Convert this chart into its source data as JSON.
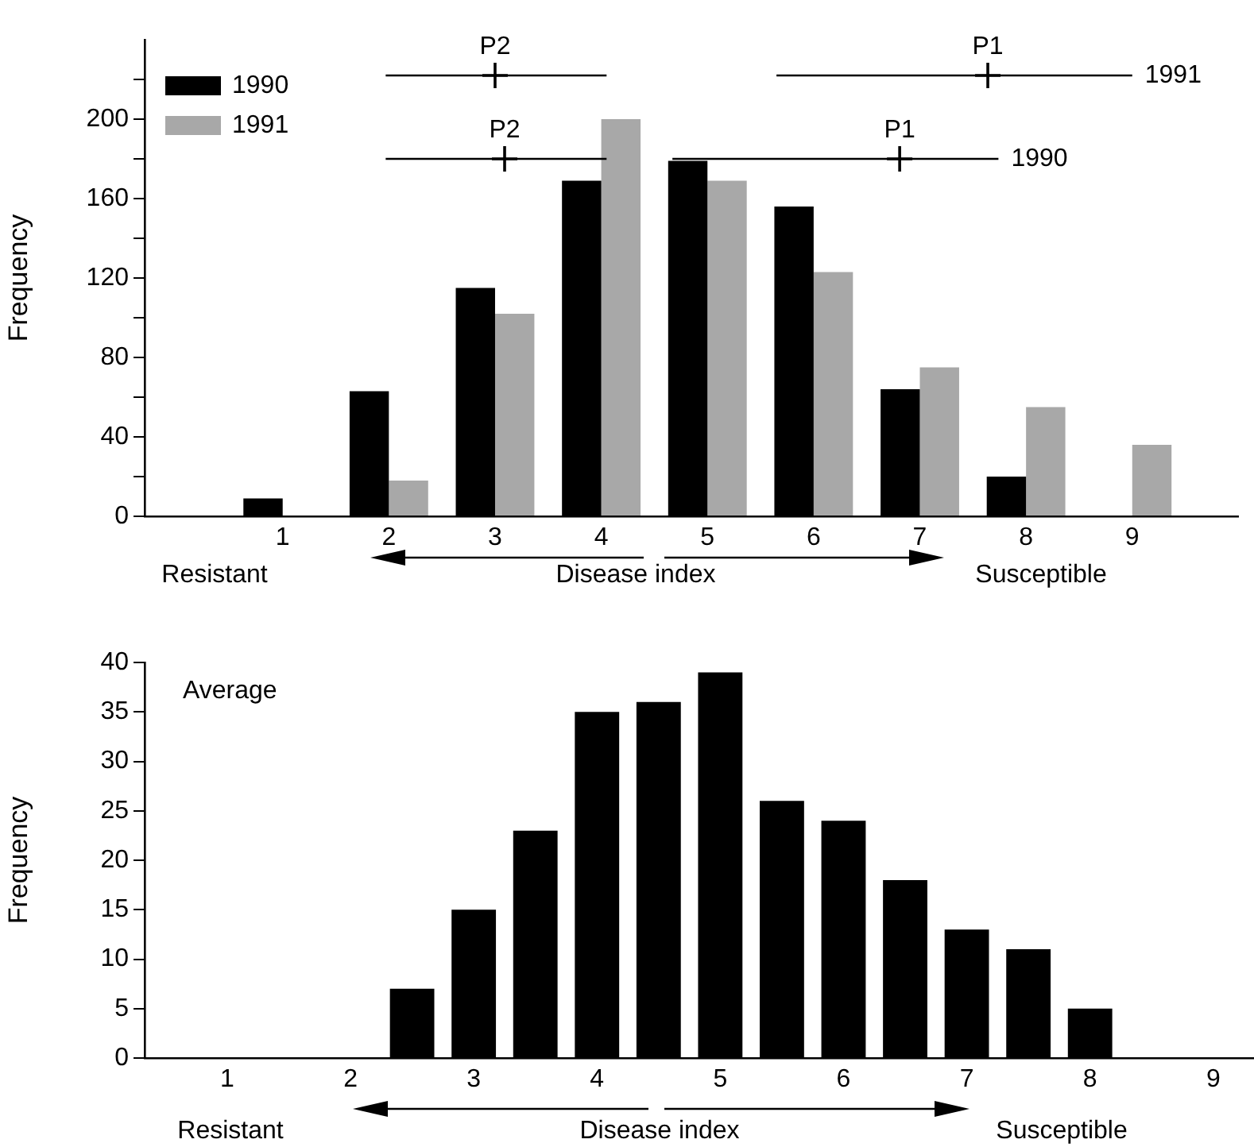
{
  "chart_data": [
    {
      "type": "bar",
      "ylabel": "Frequency",
      "xlabel": "Disease index",
      "x": [
        1,
        2,
        3,
        4,
        5,
        6,
        7,
        8,
        9
      ],
      "xlim": [
        -0.3,
        10
      ],
      "xticks": [
        1,
        2,
        3,
        4,
        5,
        6,
        7,
        8,
        9
      ],
      "ylim": [
        0,
        240
      ],
      "yticks": [
        0,
        {
          "value": 20,
          "label": null
        },
        40,
        {
          "value": 60,
          "label": null
        },
        80,
        {
          "value": 100,
          "label": null
        },
        120,
        {
          "value": 140,
          "label": null
        },
        160,
        {
          "value": 180,
          "label": null
        },
        200,
        {
          "value": 220,
          "label": null
        }
      ],
      "legend": "top left",
      "series": [
        {
          "name": "1990",
          "color": "#000000",
          "values": [
            9,
            63,
            115,
            169,
            179,
            156,
            64,
            20,
            null
          ]
        },
        {
          "name": "1991",
          "color": "#a8a8a8",
          "values": [
            null,
            18,
            102,
            200,
            169,
            123,
            75,
            55,
            36
          ]
        },
        {
          "type": "scatter",
          "marker": "cross",
          "color": "#000000",
          "x": [
            3.0,
            7.64
          ],
          "values": [
            222,
            222
          ],
          "xerrors": [
            [
              1.97,
              4.05
            ],
            [
              5.65,
              9.0
            ]
          ]
        },
        {
          "type": "scatter",
          "marker": "cross",
          "color": "#000000",
          "x": [
            3.09,
            6.81
          ],
          "values": [
            180,
            180
          ],
          "xerrors": [
            [
              1.97,
              4.05
            ],
            [
              4.67,
              7.74
            ]
          ]
        }
      ],
      "annotations": [
        {
          "text": "P2",
          "x": 3.0,
          "y": 222
        },
        {
          "text": "P1",
          "x": 7.64,
          "y": 222
        },
        {
          "text": "P2",
          "x": 3.09,
          "y": 180
        },
        {
          "text": "P1",
          "x": 6.81,
          "y": 180
        },
        {
          "text": "1991",
          "x": 9.0,
          "y": 222
        },
        {
          "text": "1990",
          "x": 7.74,
          "y": 180
        },
        "Resistant",
        "Susceptible"
      ]
    },
    {
      "type": "bar",
      "title": "Average",
      "ylabel": "Frequency",
      "xlabel": "Disease index",
      "x": [
        2.5,
        3,
        3.5,
        4,
        4.5,
        5,
        5.5,
        6,
        6.5,
        7,
        7.5,
        8
      ],
      "values": [
        7,
        15,
        23,
        35,
        36,
        39,
        26,
        24,
        18,
        13,
        11,
        5
      ],
      "color": "#000000",
      "xlim": [
        0.33,
        9.33
      ],
      "xticks": [
        1,
        2,
        3,
        4,
        5,
        6,
        7,
        8,
        9
      ],
      "ylim": [
        0,
        40
      ],
      "yticks": [
        0,
        5,
        10,
        15,
        20,
        25,
        30,
        35,
        40
      ],
      "annotations": [
        "Resistant",
        "Susceptible"
      ]
    }
  ]
}
